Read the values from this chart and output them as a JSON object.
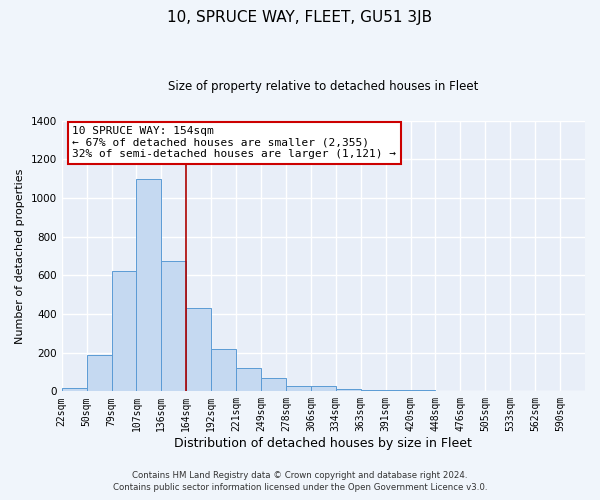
{
  "title": "10, SPRUCE WAY, FLEET, GU51 3JB",
  "subtitle": "Size of property relative to detached houses in Fleet",
  "xlabel": "Distribution of detached houses by size in Fleet",
  "ylabel": "Number of detached properties",
  "bin_labels": [
    "22sqm",
    "50sqm",
    "79sqm",
    "107sqm",
    "136sqm",
    "164sqm",
    "192sqm",
    "221sqm",
    "249sqm",
    "278sqm",
    "306sqm",
    "334sqm",
    "363sqm",
    "391sqm",
    "420sqm",
    "448sqm",
    "476sqm",
    "505sqm",
    "533sqm",
    "562sqm",
    "590sqm"
  ],
  "bar_values": [
    15,
    190,
    620,
    1100,
    675,
    430,
    220,
    120,
    70,
    30,
    25,
    10,
    5,
    5,
    5,
    2,
    1,
    0,
    0,
    0,
    0
  ],
  "bar_color": "#c5d9f1",
  "bar_edge_color": "#5b9bd5",
  "red_line_bin": 5,
  "annotation_title": "10 SPRUCE WAY: 154sqm",
  "annotation_line1": "← 67% of detached houses are smaller (2,355)",
  "annotation_line2": "32% of semi-detached houses are larger (1,121) →",
  "annotation_box_color": "#ffffff",
  "annotation_box_edge": "#cc0000",
  "footer1": "Contains HM Land Registry data © Crown copyright and database right 2024.",
  "footer2": "Contains public sector information licensed under the Open Government Licence v3.0.",
  "ylim": [
    0,
    1400
  ],
  "fig_bg": "#f0f5fb",
  "plot_bg": "#e8eef8",
  "grid_color": "#ffffff"
}
